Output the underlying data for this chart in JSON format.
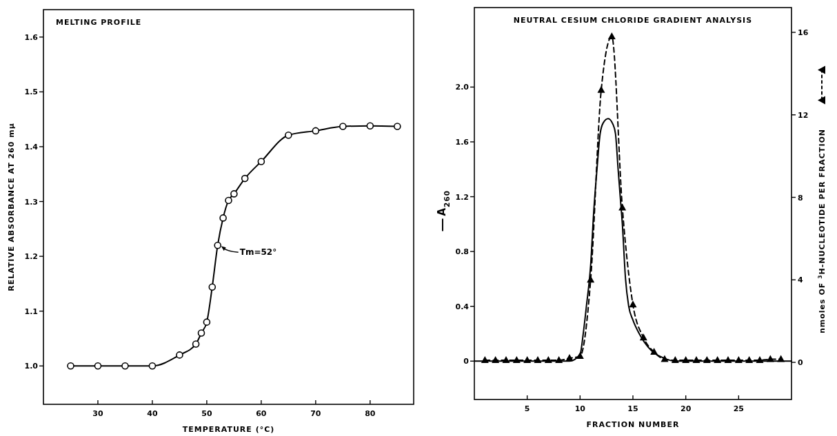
{
  "chart_data": [
    {
      "type": "line",
      "title": "MELTING PROFILE",
      "xlabel": "TEMPERATURE (°C)",
      "ylabel": "RELATIVE ABSORBANCE AT 260 mμ",
      "xlim": [
        20,
        88
      ],
      "ylim": [
        0.93,
        1.65
      ],
      "xticks": [
        30,
        40,
        50,
        60,
        70,
        80
      ],
      "yticks": [
        {
          "value": 1,
          "label": "1.0"
        },
        1.1,
        1.2,
        1.3,
        1.4,
        1.5,
        1.6
      ],
      "marker": "circle",
      "line_style": "solid",
      "grid": false,
      "series": [
        {
          "color": "#000000",
          "x": [
            25,
            30,
            35,
            40,
            45,
            48,
            49,
            50,
            51,
            52,
            53,
            54,
            55,
            57,
            60,
            65,
            70,
            75,
            80,
            85
          ],
          "values": [
            1.0,
            1.0,
            1.0,
            1.0,
            1.02,
            1.04,
            1.06,
            1.08,
            1.144,
            1.22,
            1.27,
            1.302,
            1.314,
            1.342,
            1.373,
            1.421,
            1.429,
            1.437,
            1.438,
            1.437
          ]
        }
      ],
      "annotations": [
        {
          "text": "Tm=52°",
          "x": 52,
          "y": 1.22
        }
      ]
    },
    {
      "type": "line",
      "title": "NEUTRAL CESIUM CHLORIDE GRADIENT ANALYSIS",
      "xlabel": "FRACTION NUMBER",
      "ylabel": "A$_{260}$",
      "y2label": "nmoles OF $^{3}$H-NUCLEOTIDE PER FRACTION",
      "xlim": [
        0,
        30
      ],
      "ylim": [
        -0.28,
        2.58
      ],
      "y2lim": [
        -1.8,
        17.2
      ],
      "xticks": [
        5,
        10,
        15,
        20,
        25
      ],
      "yticks": [
        0,
        0.4,
        0.8,
        1.2,
        1.6,
        {
          "value": 2,
          "label": "2.0"
        }
      ],
      "y2ticks": [
        0,
        4,
        8,
        12,
        16
      ],
      "grid": false,
      "series": [
        {
          "color": "#000000",
          "marker": "none",
          "line_style": "solid",
          "x": [
            0,
            9,
            10,
            10.3,
            10.6,
            11,
            11.3,
            11.6,
            11.9,
            12.2,
            12.66,
            13.1,
            13.35,
            13.6,
            13.8,
            14,
            14.3,
            14.6,
            15,
            15.6,
            16.7,
            18,
            19,
            30
          ],
          "values": [
            0,
            0,
            0.05,
            0.2,
            0.4,
            0.7,
            1.1,
            1.4,
            1.66,
            1.74,
            1.77,
            1.73,
            1.66,
            1.4,
            1.2,
            1.0,
            0.6,
            0.4,
            0.3,
            0.2,
            0.08,
            0.02,
            0,
            0
          ]
        },
        {
          "color": "#000000",
          "marker": "triangle",
          "line_style": "dashed",
          "axis": "y2",
          "x": [
            1,
            2,
            3,
            4,
            5,
            6,
            7,
            8,
            9,
            10,
            11,
            12,
            13,
            14,
            15,
            16,
            17,
            18,
            19,
            20,
            21,
            22,
            23,
            24,
            25,
            26,
            27,
            28,
            29
          ],
          "values": [
            0.1,
            0.1,
            0.1,
            0.1,
            0.1,
            0.1,
            0.1,
            0.1,
            0.2,
            0.3,
            4.0,
            13.2,
            15.8,
            7.5,
            2.8,
            1.2,
            0.5,
            0.15,
            0.1,
            0.1,
            0.1,
            0.1,
            0.1,
            0.1,
            0.1,
            0.1,
            0.1,
            0.15,
            0.15
          ]
        }
      ]
    }
  ]
}
